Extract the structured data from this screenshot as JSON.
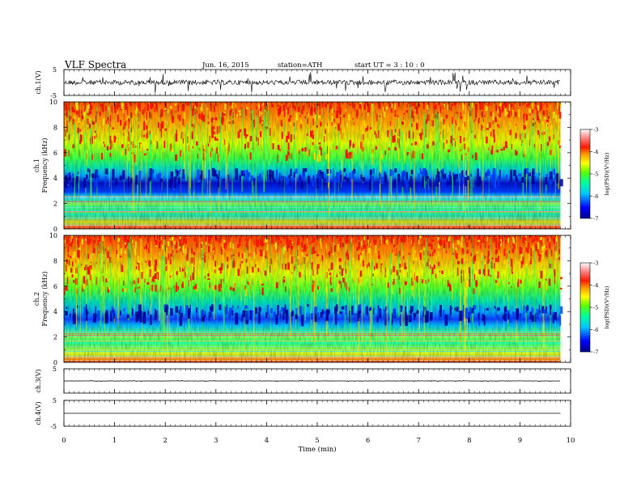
{
  "header": {
    "title": "VLF  Spectra",
    "date": "Jun. 16, 2015",
    "station": "station=ATH",
    "start": "start  UT  =   3  : 10 : 0"
  },
  "chart_data": {
    "type": "heatmap",
    "xlabel": "Time  (min)",
    "xlim": [
      0,
      10
    ],
    "x_ticks": [
      "0",
      "1",
      "2",
      "3",
      "4",
      "5",
      "6",
      "7",
      "8",
      "9",
      "10"
    ],
    "data_end_min": 9.8,
    "panels": [
      {
        "kind": "waveform",
        "ylabel": "ch.1(V)",
        "ylim": [
          -5,
          5
        ],
        "y_ticks": [
          "5",
          "-5"
        ],
        "amplitude_v": 1.6
      },
      {
        "kind": "spectrogram",
        "ylabel_top": "ch.1",
        "ylabel": "Frequency  (kHz)",
        "ylim": [
          0,
          10
        ],
        "y_ticks": [
          "0",
          "2",
          "4",
          "6",
          "8",
          "10"
        ],
        "colorbar": {
          "label": "log(PSD)(V²/Hz)",
          "range": [
            -7,
            -3
          ],
          "ticks": [
            "-3",
            "-4",
            "-5",
            "-6",
            "-7"
          ]
        }
      },
      {
        "kind": "spectrogram",
        "ylabel_top": "ch.2",
        "ylabel": "Frequency  (kHz)",
        "ylim": [
          0,
          10
        ],
        "y_ticks": [
          "0",
          "2",
          "4",
          "6",
          "8",
          "10"
        ],
        "colorbar": {
          "label": "log(PSD)(V²/Hz)",
          "range": [
            -7,
            -3
          ],
          "ticks": [
            "-3",
            "-4",
            "-5",
            "-6",
            "-7"
          ]
        }
      },
      {
        "kind": "waveform",
        "ylabel": "ch.3(V)",
        "ylim": [
          -5,
          5
        ],
        "y_ticks": [
          "5"
        ],
        "amplitude_v": 0.1
      },
      {
        "kind": "waveform",
        "ylabel": "ch.4(V)",
        "ylim": [
          -5,
          5
        ],
        "y_ticks": [
          "5",
          "-5"
        ],
        "amplitude_v": 0.0
      }
    ]
  }
}
